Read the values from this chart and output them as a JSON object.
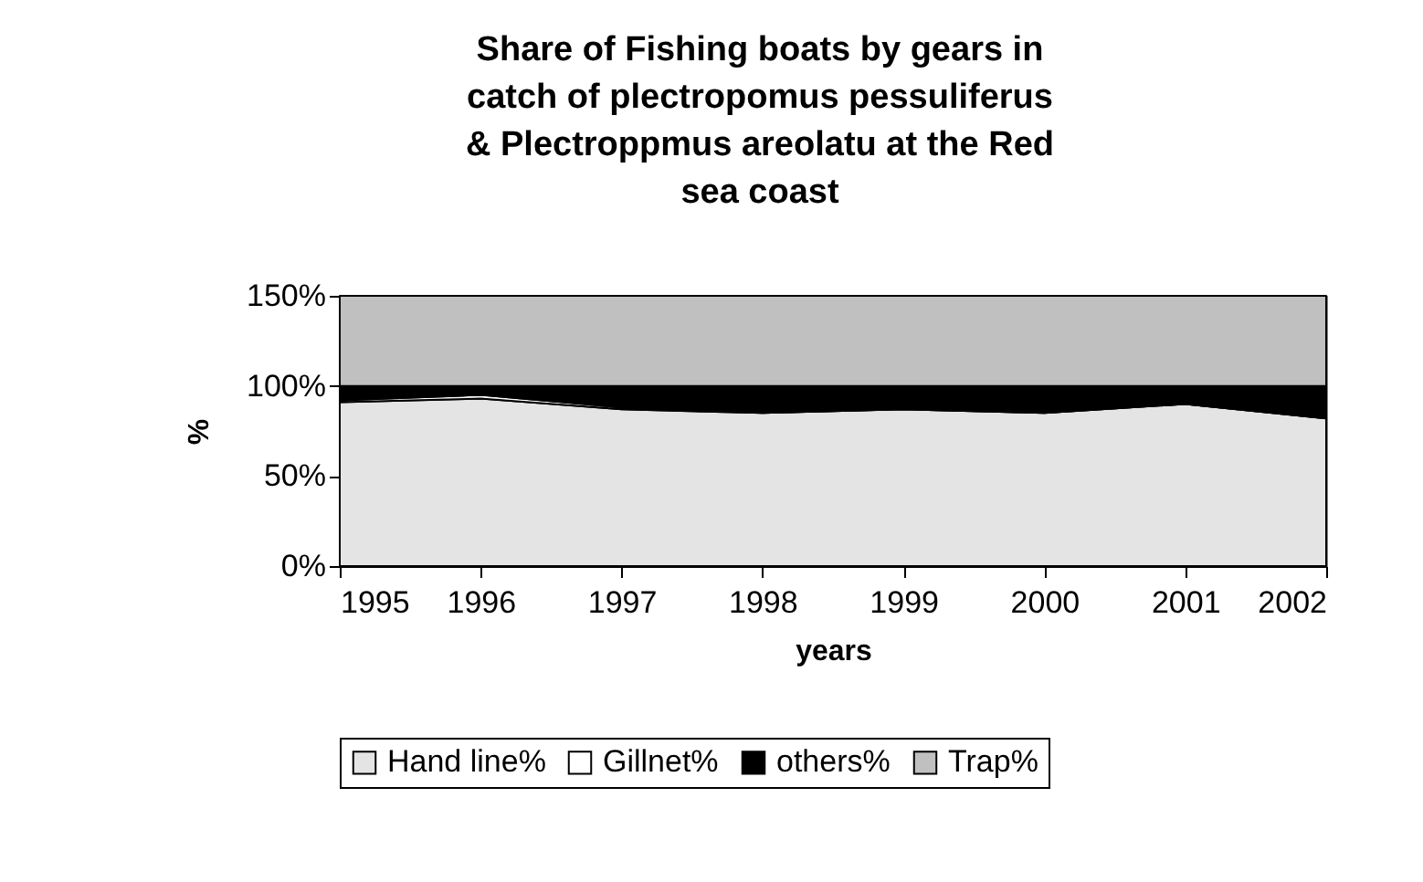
{
  "chart_data": {
    "type": "area",
    "title": "Share of Fishing boats by gears in catch of plectropomus pessuliferus & Plectroppmus areolatu at the Red sea coast",
    "xlabel": "years",
    "ylabel": "%",
    "categories": [
      "1995",
      "1996",
      "1997",
      "1998",
      "1999",
      "2000",
      "2001",
      "2002"
    ],
    "stacked": true,
    "series": [
      {
        "name": "Hand line%",
        "color": "#e4e4e4",
        "values": [
          91,
          93,
          87,
          85,
          87,
          85,
          90,
          82
        ]
      },
      {
        "name": "Gillnet%",
        "color": "#ffffff",
        "values": [
          1,
          2,
          1,
          0,
          0,
          0,
          0,
          0
        ]
      },
      {
        "name": "others%",
        "color": "#000000",
        "values": [
          8,
          5,
          12,
          15,
          13,
          15,
          10,
          18
        ]
      },
      {
        "name": "Trap%",
        "color": "#c0c0c0",
        "values": [
          50,
          50,
          50,
          50,
          50,
          50,
          50,
          50
        ]
      }
    ],
    "ylim": [
      0,
      150
    ],
    "yticks": [
      {
        "value": 0,
        "label": "0%"
      },
      {
        "value": 50,
        "label": "50%"
      },
      {
        "value": 100,
        "label": "100%"
      },
      {
        "value": 150,
        "label": "150%"
      }
    ],
    "grid": false,
    "legend": "bottom"
  }
}
